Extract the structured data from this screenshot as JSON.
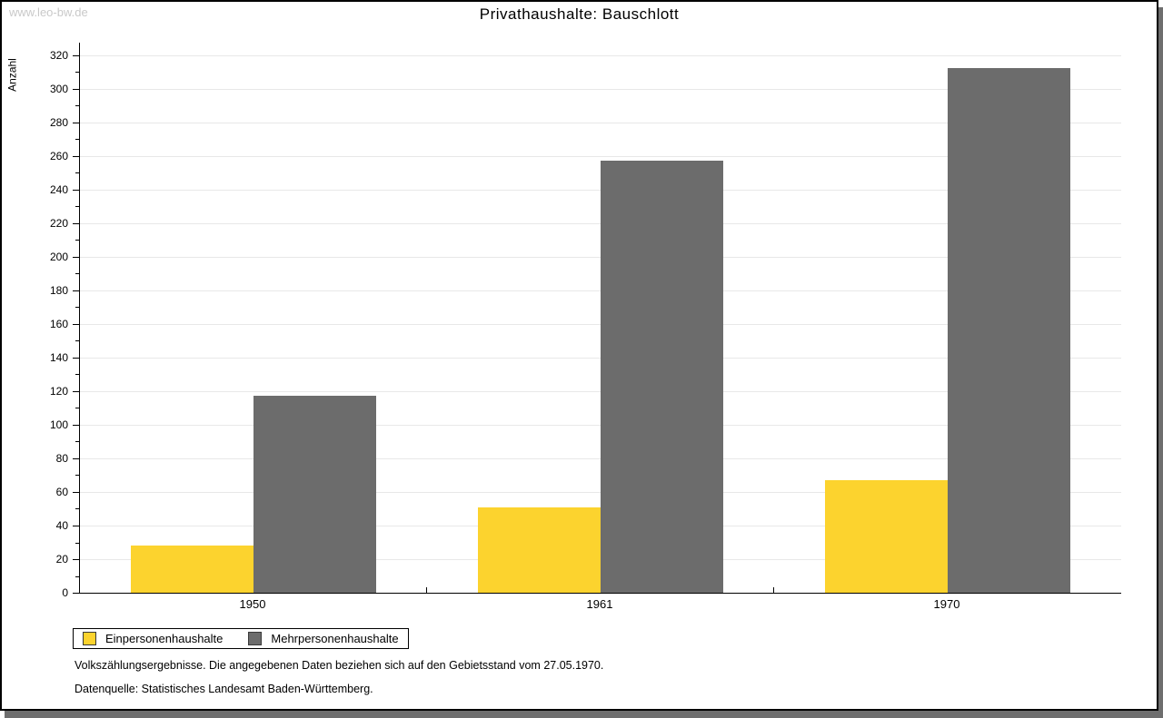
{
  "watermark": "www.leo-bw.de",
  "title": "Privathaushalte: Bauschlott",
  "chart_data": {
    "type": "bar",
    "title": "Privathaushalte: Bauschlott",
    "categories": [
      "1950",
      "1961",
      "1970"
    ],
    "series": [
      {
        "name": "Einpersonenhaushalte",
        "color": "#FCD32E",
        "values": [
          28,
          51,
          67
        ]
      },
      {
        "name": "Mehrpersonenhaushalte",
        "color": "#6C6C6C",
        "values": [
          117,
          257,
          312
        ]
      }
    ],
    "xlabel": "",
    "ylabel": "Anzahl",
    "ylim": [
      0,
      320
    ],
    "y_major_step": 20,
    "y_minor_step": 10,
    "y_ticks": [
      0,
      20,
      40,
      60,
      80,
      100,
      120,
      140,
      160,
      180,
      200,
      220,
      240,
      260,
      280,
      300,
      320
    ],
    "grid": true,
    "legend_position": "bottom-left"
  },
  "footnotes": {
    "line1": "Volkszählungsergebnisse. Die angegebenen Daten beziehen sich auf den Gebietsstand vom 27.05.1970.",
    "line2": "Datenquelle: Statistisches Landesamt Baden-Württemberg."
  },
  "colors": {
    "series1": "#FCD32E",
    "series2": "#6C6C6C",
    "gridline": "#E8E8E8",
    "axis": "#000000",
    "watermark": "#C9C9C9",
    "shadow": "#6E6E6E",
    "background": "#FFFFFF"
  }
}
